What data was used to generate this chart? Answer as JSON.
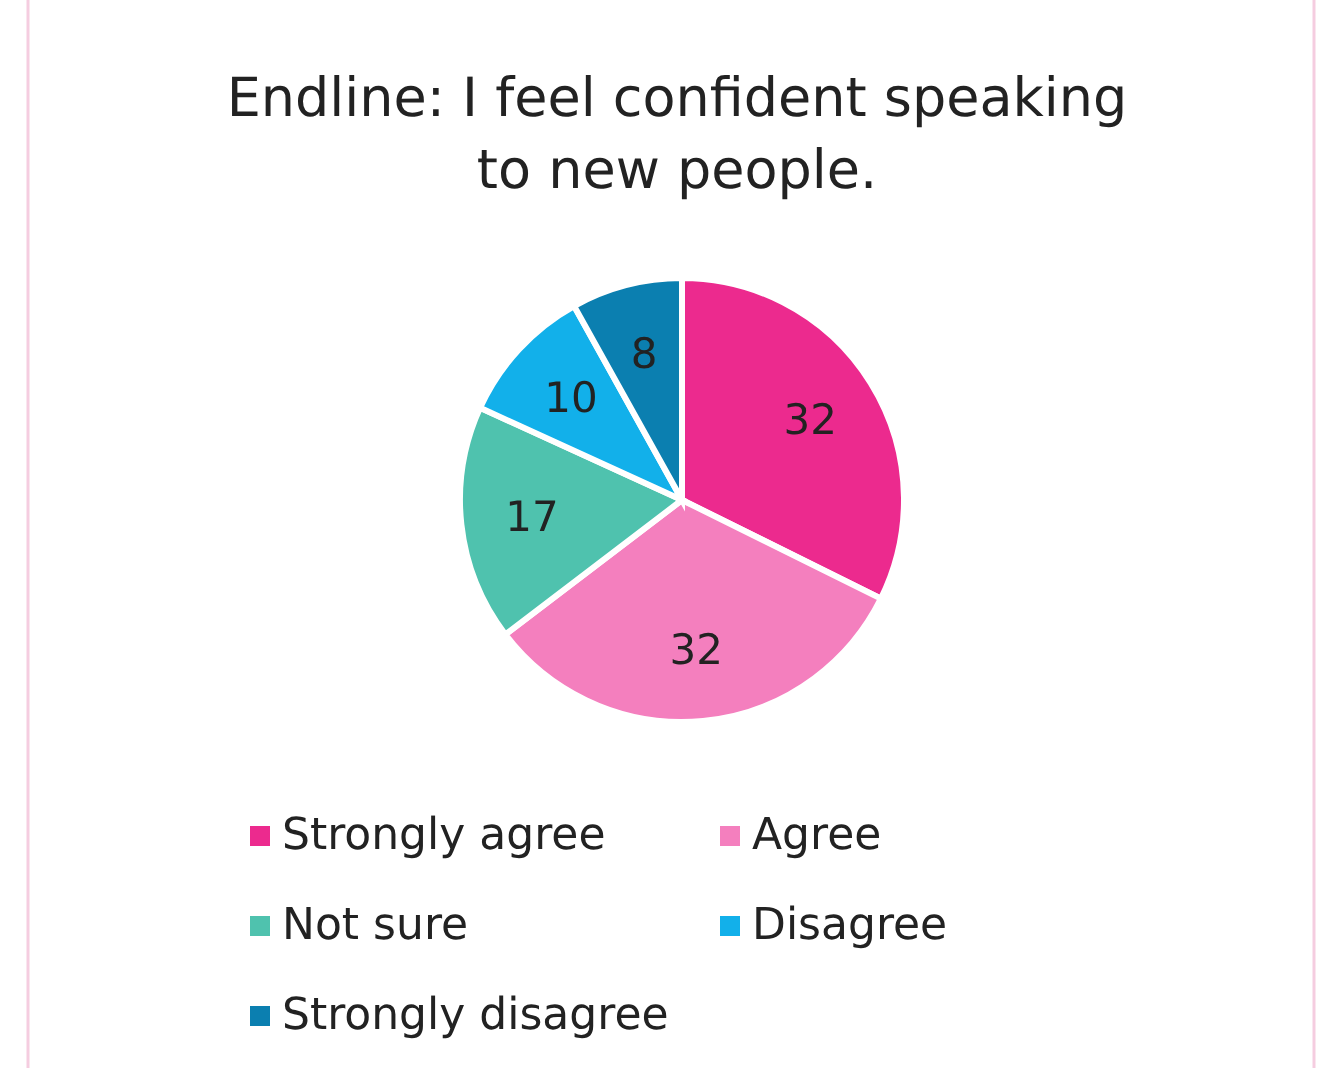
{
  "chart_data": {
    "type": "pie",
    "title": "Endline: I feel confident speaking to new people.",
    "categories": [
      "Strongly agree",
      "Agree",
      "Not sure",
      "Disagree",
      "Strongly disagree"
    ],
    "values": [
      32,
      32,
      17,
      10,
      8
    ],
    "colors": [
      "#ec2a8e",
      "#f47fbe",
      "#4fc2ae",
      "#12b0ea",
      "#0b7fb0"
    ],
    "data_labels": true,
    "legend": "bottom"
  }
}
